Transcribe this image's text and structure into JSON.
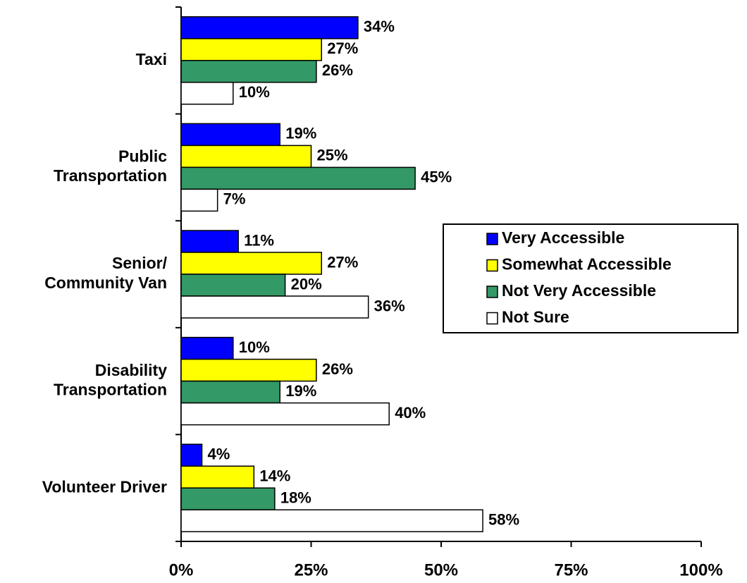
{
  "chart_data": {
    "type": "bar",
    "orientation": "horizontal",
    "categories": [
      "Taxi",
      "Public\nTransportation",
      "Senior/\nCommunity Van",
      "Disability\nTransportation",
      "Volunteer Driver"
    ],
    "series": [
      {
        "name": "Very Accessible",
        "color": "#0000ff",
        "values": [
          34,
          19,
          11,
          10,
          4
        ],
        "value_labels": [
          "34%",
          "19%",
          "11%",
          "10%",
          "4%"
        ]
      },
      {
        "name": "Somewhat Accessible",
        "color": "#ffff00",
        "values": [
          27,
          25,
          27,
          26,
          14
        ],
        "value_labels": [
          "27%",
          "25%",
          "27%",
          "26%",
          "14%"
        ]
      },
      {
        "name": "Not Very Accessible",
        "color": "#339966",
        "values": [
          26,
          45,
          20,
          19,
          18
        ],
        "value_labels": [
          "26%",
          "45%",
          "20%",
          "19%",
          "18%"
        ]
      },
      {
        "name": "Not Sure",
        "color": "#ffffff",
        "values": [
          10,
          7,
          36,
          40,
          58
        ],
        "value_labels": [
          "10%",
          "7%",
          "36%",
          "40%",
          "58%"
        ]
      }
    ],
    "xlim": [
      0,
      100
    ],
    "xticks": [
      {
        "value": 0,
        "label": "0%"
      },
      {
        "value": 25,
        "label": "25%"
      },
      {
        "value": 50,
        "label": "50%"
      },
      {
        "value": 75,
        "label": "75%"
      },
      {
        "value": 100,
        "label": "100%"
      }
    ],
    "legend": "right"
  }
}
